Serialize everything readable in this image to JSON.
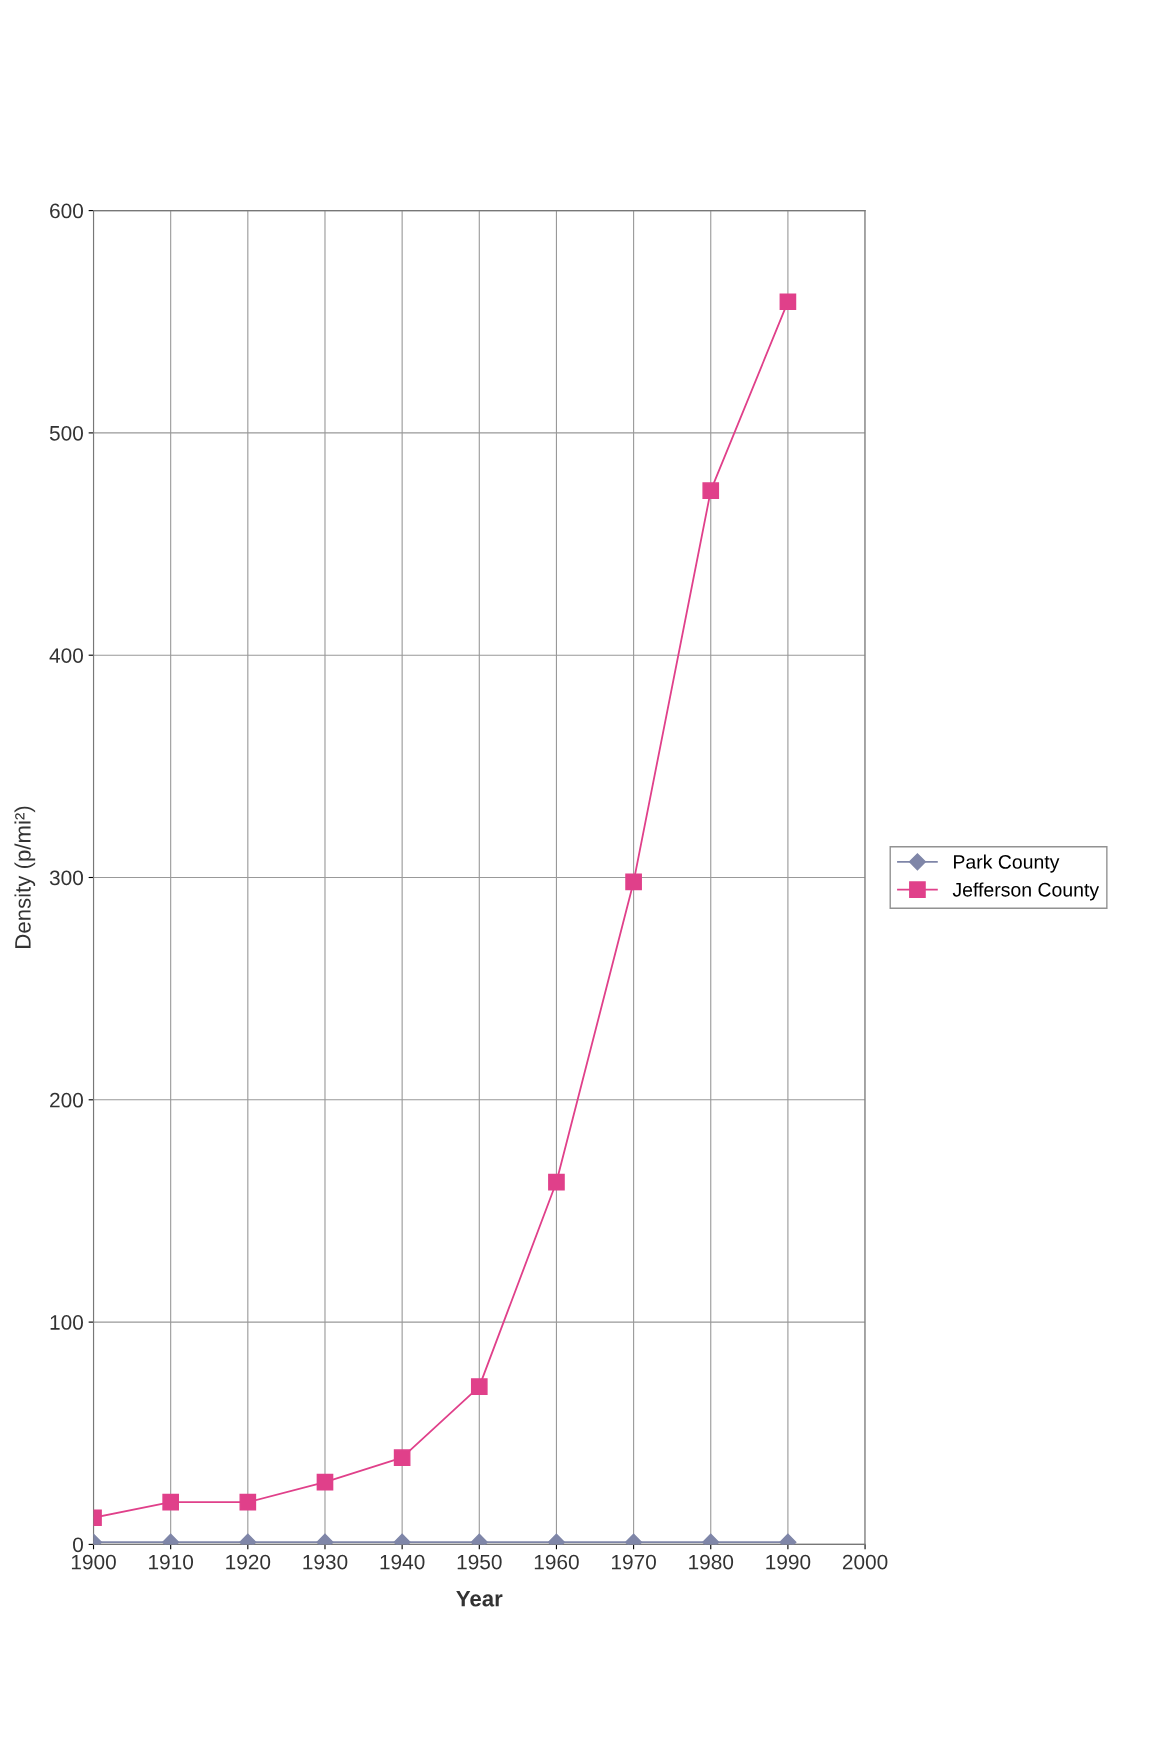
{
  "chart_data": {
    "type": "line",
    "xlabel": "Year",
    "ylabel": "Density (p/mi²)",
    "x": [
      1900,
      1910,
      1920,
      1930,
      1940,
      1950,
      1960,
      1970,
      1980,
      1990
    ],
    "xlim": [
      1900,
      2000
    ],
    "xticks": [
      1900,
      1910,
      1920,
      1930,
      1940,
      1950,
      1960,
      1970,
      1980,
      1990,
      2000
    ],
    "ylim": [
      0,
      600
    ],
    "yticks": [
      0,
      100,
      200,
      300,
      400,
      500,
      600
    ],
    "grid": true,
    "legend": "right",
    "series": [
      {
        "name": "Park County",
        "color": "#7f86a8",
        "marker": "diamond",
        "values": [
          1,
          1,
          1,
          1,
          1,
          1,
          1,
          1,
          1,
          1
        ]
      },
      {
        "name": "Jefferson County",
        "color": "#e0408a",
        "marker": "square",
        "values": [
          12,
          19,
          19,
          28,
          39,
          71,
          163,
          298,
          474,
          559
        ]
      }
    ]
  }
}
